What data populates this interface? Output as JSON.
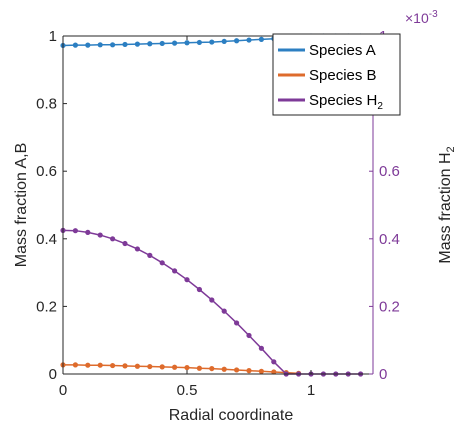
{
  "chart_data": {
    "type": "line",
    "xlabel": "Radial coordinate",
    "ylabel_left_prefix": "Mass fraction A,B",
    "ylabel_right_base": "Mass fraction H",
    "ylabel_right_sub": "2",
    "right_exponent_base": "×10",
    "right_exponent_power": "-3",
    "xlim": [
      0,
      1.25
    ],
    "ylim_left": [
      0,
      1
    ],
    "ylim_right": [
      0,
      1
    ],
    "right_axis_scale": "1e-3",
    "x_ticks": [
      {
        "value": 0,
        "label": "0"
      },
      {
        "value": 0.5,
        "label": "0.5"
      },
      {
        "value": 1,
        "label": "1"
      }
    ],
    "y_ticks_left": [
      {
        "value": 0,
        "label": "0"
      },
      {
        "value": 0.2,
        "label": "0.2"
      },
      {
        "value": 0.4,
        "label": "0.4"
      },
      {
        "value": 0.6,
        "label": "0.6"
      },
      {
        "value": 0.8,
        "label": "0.8"
      },
      {
        "value": 1,
        "label": "1"
      }
    ],
    "y_ticks_right": [
      {
        "value": 0,
        "label": "0"
      },
      {
        "value": 0.2,
        "label": "0.2"
      },
      {
        "value": 0.4,
        "label": "0.4"
      },
      {
        "value": 0.6,
        "label": "0.6"
      },
      {
        "value": 0.8,
        "label": "0.8"
      },
      {
        "value": 1,
        "label": "1"
      }
    ],
    "legend_position": "top-right",
    "grid": false,
    "colors": {
      "species_a": "#2c7fc2",
      "species_b": "#de6b2c",
      "species_h2": "#7e3a98",
      "axis_left": "#262626",
      "axis_right": "#7e3a98"
    },
    "series": [
      {
        "name": "Species A",
        "name_sub": "",
        "axis": "left",
        "color_key": "species_a",
        "x": [
          0,
          0.05,
          0.1,
          0.15,
          0.2,
          0.25,
          0.3,
          0.35,
          0.4,
          0.45,
          0.5,
          0.55,
          0.6,
          0.65,
          0.7,
          0.75,
          0.8,
          0.85,
          0.9,
          0.95,
          1.0,
          1.05,
          1.1,
          1.15,
          1.2
        ],
        "y": [
          0.972,
          0.973,
          0.973,
          0.974,
          0.974,
          0.975,
          0.976,
          0.977,
          0.978,
          0.979,
          0.98,
          0.981,
          0.982,
          0.984,
          0.986,
          0.988,
          0.99,
          0.992,
          0.995,
          0.997,
          1.0,
          1.0,
          1.0,
          1.0,
          1.0
        ]
      },
      {
        "name": "Species B",
        "name_sub": "",
        "axis": "left",
        "color_key": "species_b",
        "x": [
          0,
          0.05,
          0.1,
          0.15,
          0.2,
          0.25,
          0.3,
          0.35,
          0.4,
          0.45,
          0.5,
          0.55,
          0.6,
          0.65,
          0.7,
          0.75,
          0.8,
          0.85,
          0.9,
          0.95
        ],
        "y": [
          0.027,
          0.027,
          0.026,
          0.026,
          0.025,
          0.024,
          0.023,
          0.022,
          0.021,
          0.02,
          0.019,
          0.017,
          0.016,
          0.014,
          0.012,
          0.01,
          0.008,
          0.006,
          0.004,
          0.002
        ]
      },
      {
        "name": "Species H",
        "name_sub": "2",
        "axis": "right",
        "color_key": "species_h2",
        "x": [
          0,
          0.05,
          0.1,
          0.15,
          0.2,
          0.25,
          0.3,
          0.35,
          0.4,
          0.45,
          0.5,
          0.55,
          0.6,
          0.65,
          0.7,
          0.75,
          0.8,
          0.85,
          0.9,
          0.95,
          1.0,
          1.05,
          1.1,
          1.15,
          1.2
        ],
        "y": [
          0.425,
          0.424,
          0.419,
          0.411,
          0.4,
          0.386,
          0.37,
          0.351,
          0.329,
          0.305,
          0.279,
          0.25,
          0.219,
          0.186,
          0.151,
          0.114,
          0.076,
          0.036,
          0,
          0,
          0,
          0,
          0,
          0,
          0
        ]
      }
    ]
  }
}
